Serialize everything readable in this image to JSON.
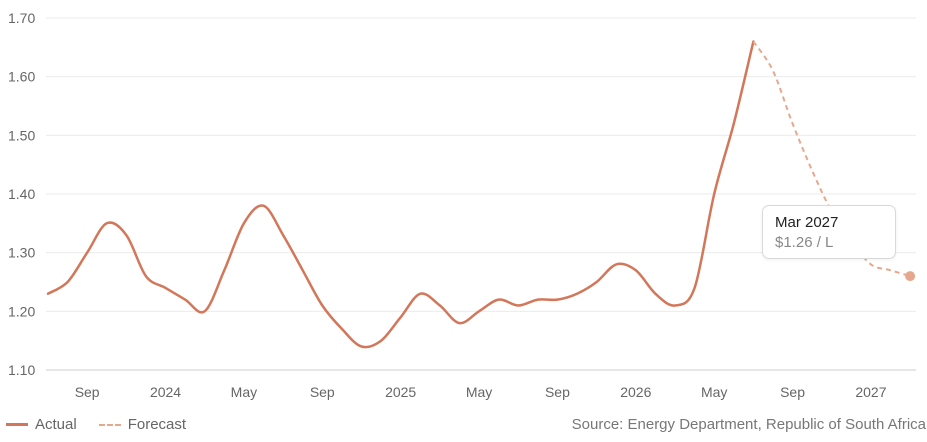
{
  "chart_data": {
    "type": "line",
    "y_ticks": [
      "1.10",
      "1.20",
      "1.30",
      "1.40",
      "1.50",
      "1.60",
      "1.70"
    ],
    "ylim": [
      1.1,
      1.7
    ],
    "x_ticks": [
      {
        "label": "Sep",
        "x": 2.0
      },
      {
        "label": "2024",
        "x": 6.0
      },
      {
        "label": "May",
        "x": 10.0
      },
      {
        "label": "Sep",
        "x": 14.0
      },
      {
        "label": "2025",
        "x": 18.0
      },
      {
        "label": "May",
        "x": 22.0
      },
      {
        "label": "Sep",
        "x": 26.0
      },
      {
        "label": "2026",
        "x": 30.0
      },
      {
        "label": "May",
        "x": 34.0
      },
      {
        "label": "Sep",
        "x": 38.0
      },
      {
        "label": "2027",
        "x": 42.0
      }
    ],
    "xlim": [
      -0.1,
      44.3
    ],
    "grid": true,
    "series": [
      {
        "name": "Actual",
        "style": "solid",
        "color": "#d3775a",
        "x": [
          0,
          1,
          2,
          3,
          4,
          5,
          6,
          7,
          8,
          9,
          10,
          11,
          12,
          13,
          14,
          15,
          16,
          17,
          18,
          19,
          20,
          21,
          22,
          23,
          24,
          25,
          26,
          27,
          28,
          29,
          30,
          31,
          32,
          33,
          34,
          35,
          36
        ],
        "y": [
          1.23,
          1.25,
          1.3,
          1.35,
          1.33,
          1.26,
          1.24,
          1.22,
          1.2,
          1.27,
          1.35,
          1.38,
          1.33,
          1.27,
          1.21,
          1.17,
          1.14,
          1.15,
          1.19,
          1.23,
          1.21,
          1.18,
          1.2,
          1.22,
          1.21,
          1.22,
          1.22,
          1.23,
          1.25,
          1.28,
          1.27,
          1.23,
          1.21,
          1.24,
          1.4,
          1.52,
          1.66
        ]
      },
      {
        "name": "Forecast",
        "style": "dashed",
        "color": "#e5a88f",
        "x": [
          36,
          37,
          38,
          39,
          40,
          41,
          42,
          43,
          44
        ],
        "y": [
          1.66,
          1.61,
          1.52,
          1.44,
          1.37,
          1.32,
          1.28,
          1.27,
          1.26
        ]
      }
    ]
  },
  "legend": {
    "actual": "Actual",
    "forecast": "Forecast"
  },
  "source": "Source: Energy Department, Republic of South Africa",
  "tooltip": {
    "date": "Mar 2027",
    "value": "$1.26 / L"
  },
  "colors": {
    "actual": "#d3775a",
    "forecast": "#e5a88f",
    "grid": "#ebebeb",
    "axis": "#cccccc"
  }
}
